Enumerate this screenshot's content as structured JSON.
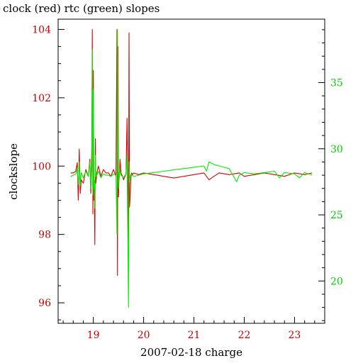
{
  "chart_data": {
    "type": "line",
    "title": "clock (red) rtc (green) slopes",
    "xlabel": "2007-02-18 charge",
    "ylabel": "clockslope",
    "xlim": [
      18.3,
      23.6
    ],
    "ylim_left": [
      95.4,
      104.3
    ],
    "ylim_right": [
      16.8,
      39.8
    ],
    "x_ticks": [
      19,
      20,
      21,
      22,
      23
    ],
    "x_tick_labels": [
      "19",
      "20",
      "21",
      "22",
      "23"
    ],
    "y_left_ticks": [
      96,
      98,
      100,
      102,
      104
    ],
    "y_left_tick_labels": [
      "96",
      "98",
      "100",
      "102",
      "104"
    ],
    "y_right_ticks": [
      20,
      25,
      30,
      35
    ],
    "y_right_tick_labels": [
      "20",
      "25",
      "30",
      "35"
    ],
    "colors": {
      "clock": "#dd0000",
      "rtc": "#00ee00",
      "axes": "#000000",
      "left_ticks": "#cc0000",
      "right_ticks": "#00cc00"
    },
    "series": [
      {
        "axis": "left",
        "color": "#dd0000",
        "x": [
          18.55,
          18.6,
          18.65,
          18.68,
          18.7,
          18.72,
          18.74,
          18.76,
          18.8,
          18.85,
          18.9,
          18.93,
          18.95,
          18.97,
          18.98,
          18.99,
          19.0,
          19.01,
          19.02,
          19.03,
          19.04,
          19.05,
          19.07,
          19.1,
          19.15,
          19.2,
          19.25,
          19.3,
          19.35,
          19.4,
          19.45,
          19.47,
          19.48,
          19.49,
          19.5,
          19.51,
          19.52,
          19.53,
          19.55,
          19.58,
          19.6,
          19.63,
          19.65,
          19.67,
          19.7,
          19.71,
          19.72,
          19.73,
          19.74,
          19.75,
          19.76,
          19.78,
          19.8,
          19.9,
          20.0,
          20.2,
          20.4,
          20.6,
          20.8,
          21.0,
          21.2,
          21.3,
          21.4,
          21.5,
          21.7,
          21.9,
          22.0,
          22.2,
          22.4,
          22.6,
          22.8,
          23.0,
          23.2,
          23.35
        ],
        "values": [
          99.8,
          99.8,
          99.85,
          100.1,
          99.0,
          100.5,
          99.2,
          99.6,
          99.5,
          99.9,
          99.7,
          100.2,
          99.2,
          100.6,
          104.0,
          98.6,
          102.8,
          99.0,
          99.4,
          97.7,
          100.8,
          99.5,
          99.8,
          100.0,
          99.7,
          99.9,
          99.8,
          99.8,
          99.7,
          99.9,
          99.7,
          104.0,
          96.8,
          103.5,
          99.1,
          99.6,
          99.8,
          100.2,
          99.8,
          99.7,
          99.6,
          99.7,
          99.8,
          101.4,
          97.8,
          103.9,
          98.8,
          99.0,
          99.5,
          99.7,
          99.8,
          99.75,
          99.8,
          99.75,
          99.8,
          99.75,
          99.7,
          99.65,
          99.7,
          99.75,
          99.8,
          99.6,
          99.7,
          99.8,
          99.75,
          99.8,
          99.7,
          99.75,
          99.8,
          99.75,
          99.7,
          99.8,
          99.75,
          99.8
        ]
      },
      {
        "axis": "right",
        "color": "#00ee00",
        "x": [
          18.55,
          18.6,
          18.65,
          18.68,
          18.7,
          18.72,
          18.74,
          18.76,
          18.8,
          18.85,
          18.9,
          18.93,
          18.95,
          18.97,
          18.98,
          18.99,
          19.0,
          19.01,
          19.02,
          19.03,
          19.04,
          19.05,
          19.07,
          19.1,
          19.15,
          19.2,
          19.25,
          19.3,
          19.35,
          19.4,
          19.45,
          19.47,
          19.48,
          19.49,
          19.5,
          19.51,
          19.52,
          19.53,
          19.55,
          19.58,
          19.6,
          19.63,
          19.65,
          19.67,
          19.7,
          19.71,
          19.72,
          19.73,
          19.74,
          19.75,
          19.76,
          19.78,
          19.8,
          19.9,
          20.0,
          20.2,
          20.4,
          20.6,
          20.8,
          21.0,
          21.2,
          21.25,
          21.3,
          21.4,
          21.5,
          21.6,
          21.7,
          21.85,
          21.9,
          22.0,
          22.2,
          22.4,
          22.6,
          22.7,
          22.8,
          23.0,
          23.1,
          23.2,
          23.35
        ],
        "values": [
          27.9,
          28.0,
          28.1,
          28.5,
          27.3,
          29.0,
          27.2,
          28.2,
          27.8,
          28.3,
          27.9,
          29.0,
          27.0,
          28.5,
          37.5,
          26.5,
          34.5,
          27.0,
          27.6,
          25.5,
          29.5,
          27.9,
          28.0,
          28.3,
          27.8,
          28.1,
          28.0,
          28.0,
          27.9,
          28.1,
          28.0,
          23.5,
          39.0,
          30.0,
          27.0,
          28.2,
          28.0,
          28.4,
          28.0,
          27.9,
          27.8,
          28.0,
          28.1,
          29.5,
          18.0,
          29.0,
          27.5,
          27.8,
          28.0,
          28.1,
          28.0,
          28.0,
          27.9,
          28.0,
          28.1,
          28.2,
          28.3,
          28.4,
          28.5,
          28.6,
          28.7,
          28.3,
          29.0,
          28.8,
          28.7,
          28.6,
          28.5,
          27.5,
          28.0,
          28.2,
          28.1,
          28.2,
          28.3,
          27.8,
          28.2,
          28.1,
          27.8,
          28.2,
          28.0
        ]
      }
    ]
  }
}
